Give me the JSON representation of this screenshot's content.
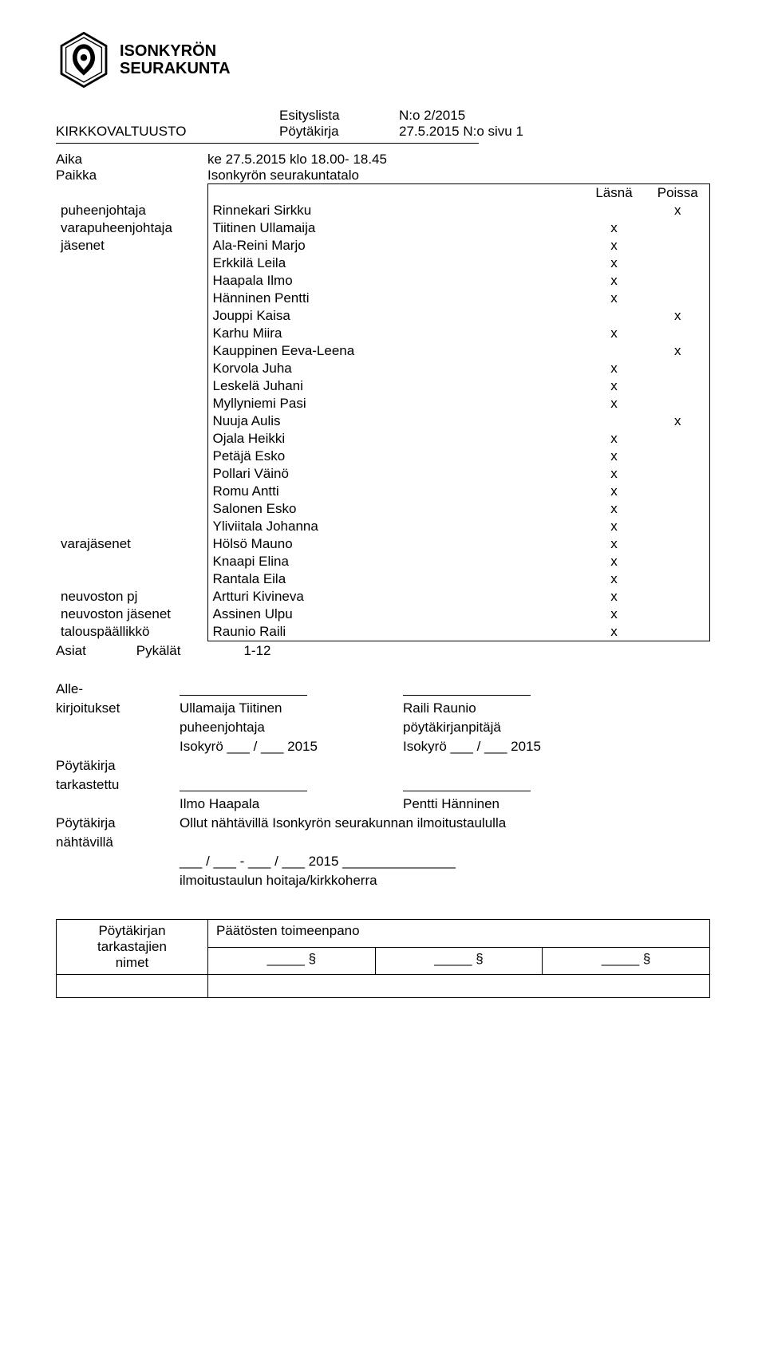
{
  "header": {
    "org_line1": "ISONKYRÖN",
    "org_line2": "SEURAKUNTA",
    "esityslista": "Esityslista",
    "esityslista_nro": "N:o 2/2015",
    "committee": "KIRKKOVALTUUSTO",
    "poytakirja": "Pöytäkirja",
    "poytakirja_date": "27.5.2015 N:o sivu 1"
  },
  "time_place": {
    "aika_label": "Aika",
    "aika_value": "ke 27.5.2015 klo 18.00- 18.45",
    "paikka_label": "Paikka",
    "paikka_value": "Isonkyrön seurakuntatalo"
  },
  "attendance": {
    "lasna": "Läsnä",
    "poissa": "Poissa",
    "roles": {
      "puheenjohtaja": "puheenjohtaja",
      "varapuheenjohtaja": "varapuheenjohtaja",
      "jasenet": "jäsenet",
      "varajasenet": "varajäsenet",
      "neuvoston_pj": "neuvoston pj",
      "neuvoston_jasenet": "neuvoston jäsenet",
      "talouspaallikko": "talouspäällikkö"
    },
    "rows": [
      {
        "role": "puheenjohtaja",
        "name": "Rinnekari Sirkku",
        "present": "",
        "absent": "x"
      },
      {
        "role": "varapuheenjohtaja",
        "name": "Tiitinen Ullamaija",
        "present": "x",
        "absent": ""
      },
      {
        "role": "jäsenet",
        "name": "Ala-Reini Marjo",
        "present": "x",
        "absent": ""
      },
      {
        "role": "",
        "name": "Erkkilä Leila",
        "present": "x",
        "absent": ""
      },
      {
        "role": "",
        "name": "Haapala Ilmo",
        "present": "x",
        "absent": ""
      },
      {
        "role": "",
        "name": "Hänninen Pentti",
        "present": "x",
        "absent": ""
      },
      {
        "role": "",
        "name": "Jouppi Kaisa",
        "present": "",
        "absent": "x"
      },
      {
        "role": "",
        "name": "Karhu Miira",
        "present": "x",
        "absent": ""
      },
      {
        "role": "",
        "name": "Kauppinen Eeva-Leena",
        "present": "",
        "absent": "x"
      },
      {
        "role": "",
        "name": "Korvola Juha",
        "present": "x",
        "absent": ""
      },
      {
        "role": "",
        "name": "Leskelä Juhani",
        "present": "x",
        "absent": ""
      },
      {
        "role": "",
        "name": "Myllyniemi Pasi",
        "present": "x",
        "absent": ""
      },
      {
        "role": "",
        "name": "Nuuja Aulis",
        "present": "",
        "absent": "x"
      },
      {
        "role": "",
        "name": "Ojala Heikki",
        "present": "x",
        "absent": ""
      },
      {
        "role": "",
        "name": "Petäjä Esko",
        "present": "x",
        "absent": ""
      },
      {
        "role": "",
        "name": "Pollari Väinö",
        "present": "x",
        "absent": ""
      },
      {
        "role": "",
        "name": "Romu Antti",
        "present": "x",
        "absent": ""
      },
      {
        "role": "",
        "name": "Salonen Esko",
        "present": "x",
        "absent": ""
      },
      {
        "role": "",
        "name": "Yliviitala Johanna",
        "present": "x",
        "absent": ""
      },
      {
        "role": "varajäsenet",
        "name": "Hölsö Mauno",
        "present": "x",
        "absent": ""
      },
      {
        "role": "",
        "name": "Knaapi Elina",
        "present": "x",
        "absent": ""
      },
      {
        "role": "",
        "name": "Rantala Eila",
        "present": "x",
        "absent": ""
      },
      {
        "role": "neuvoston pj",
        "name": "Artturi Kivineva",
        "present": "x",
        "absent": ""
      },
      {
        "role": "neuvoston jäsenet",
        "name": "Assinen Ulpu",
        "present": "x",
        "absent": ""
      },
      {
        "role": "talouspäällikkö",
        "name": "Raunio Raili",
        "present": "x",
        "absent": ""
      }
    ]
  },
  "asiat": {
    "label": "Asiat",
    "pykalat": "Pykälät",
    "range": "1-12"
  },
  "signatures": {
    "alle": "Alle-",
    "kirjoitukset": "kirjoitukset",
    "signer1_name": "Ullamaija Tiitinen",
    "signer1_role": "puheenjohtaja",
    "signer1_place": "Isokyrö ___ / ___ 2015",
    "signer2_name": "Raili Raunio",
    "signer2_role": "pöytäkirjanpitäjä",
    "signer2_place": "Isokyrö ___ / ___ 2015",
    "poytakirja": "Pöytäkirja",
    "tarkastettu": "tarkastettu",
    "checker1": "Ilmo Haapala",
    "checker2": "Pentti Hänninen",
    "nahtavilla": "nähtävillä",
    "nahtavilla_text": "Ollut nähtävillä Isonkyrön seurakunnan ilmoitustaululla",
    "nahtavilla_date": "___ / ___ - ___ / ___ 2015  _______________",
    "ilmoitustaulu": "ilmoitustaulun hoitaja/kirkkoherra"
  },
  "footer": {
    "col1_line1": "Pöytäkirjan",
    "col1_line2": "tarkastajien",
    "col1_line3": "nimet",
    "col2_title": "Päätösten toimeenpano",
    "sect": "_____ §"
  },
  "colors": {
    "text": "#000000",
    "bg": "#ffffff",
    "border": "#000000"
  }
}
